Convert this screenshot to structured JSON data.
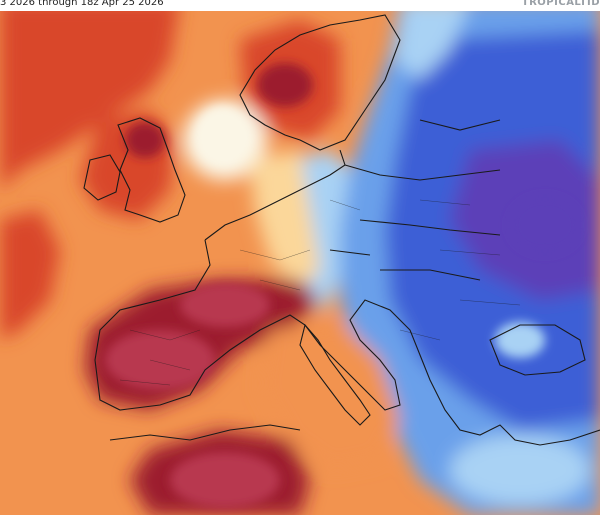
{
  "header": {
    "title": "3 2026 through 18z Apr 25 2026",
    "brand": "TROPICALTID"
  },
  "map": {
    "region": "Europe",
    "field": "temperature anomaly",
    "palette": {
      "much_colder": "#5b3fb8",
      "colder": "#3d5fd6",
      "cool": "#6aa0ea",
      "slightly_cool": "#a9d2f4",
      "near_normal": "#fbf6e6",
      "slightly_warm": "#fbd79a",
      "warm": "#f2934f",
      "much_warmer": "#d9462c",
      "extreme_warm": "#9c1f2e",
      "extreme_warm_core": "#b8394f",
      "border_color": "#1a1a1a"
    }
  }
}
